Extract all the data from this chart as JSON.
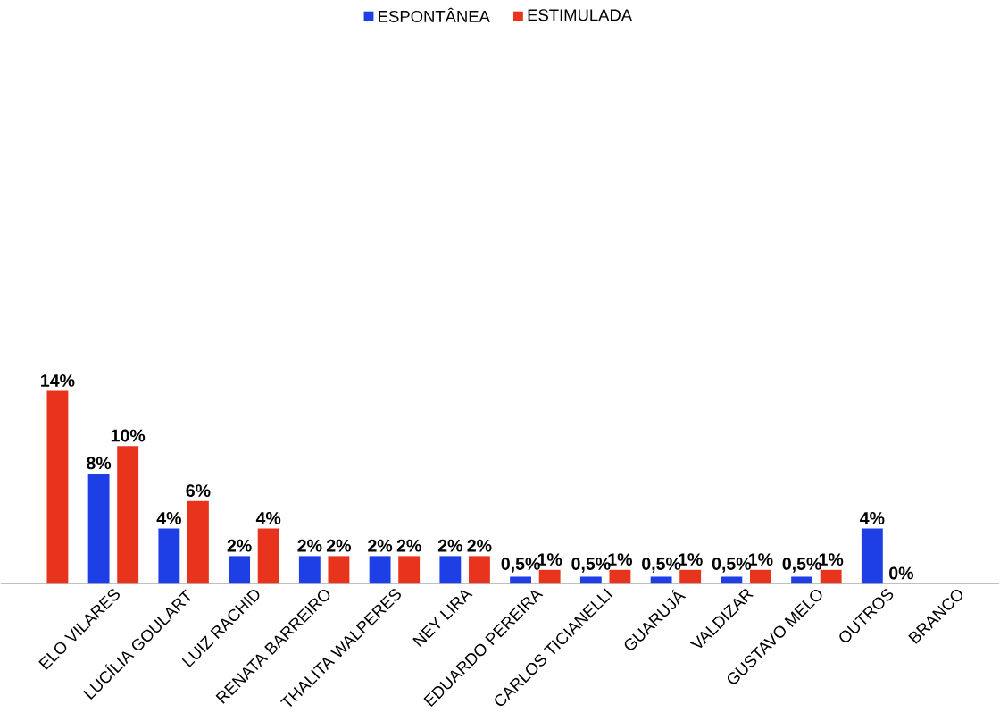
{
  "chart_data": {
    "type": "bar",
    "categories": [
      null,
      "ELO VILARES",
      "LUCÍLIA GOULART",
      "LUIZ RACHID",
      "RENATA BARREIRO",
      "THALITA WALPERES",
      "NEY LIRA",
      "EDUARDO PEREIRA",
      "CARLOS TICIANELLI",
      "GUARUJÁ",
      "VALDIZAR",
      "GUSTAVO MELO",
      "OUTROS",
      "BRANCO"
    ],
    "series": [
      {
        "name": "ESPONTÂNEA",
        "color": "#1f3fe6",
        "values": [
          null,
          8,
          4,
          2,
          2,
          2,
          2,
          0.5,
          0.5,
          0.5,
          0.5,
          0.5,
          4,
          null
        ],
        "value_labels": [
          null,
          "8%",
          "4%",
          "2%",
          "2%",
          "2%",
          "2%",
          "0,5%",
          "0,5%",
          "0,5%",
          "0,5%",
          "0,5%",
          "4%",
          null
        ]
      },
      {
        "name": "ESTIMULADA",
        "color": "#e8341c",
        "values": [
          14,
          10,
          6,
          4,
          2,
          2,
          2,
          1,
          1,
          1,
          1,
          1,
          0,
          null
        ],
        "value_labels": [
          "14%",
          "10%",
          "6%",
          "4%",
          "2%",
          "2%",
          "2%",
          "1%",
          "1%",
          "1%",
          "1%",
          "1%",
          "0%",
          null
        ]
      }
    ],
    "legend": "top",
    "tick_labels": "x"
  }
}
